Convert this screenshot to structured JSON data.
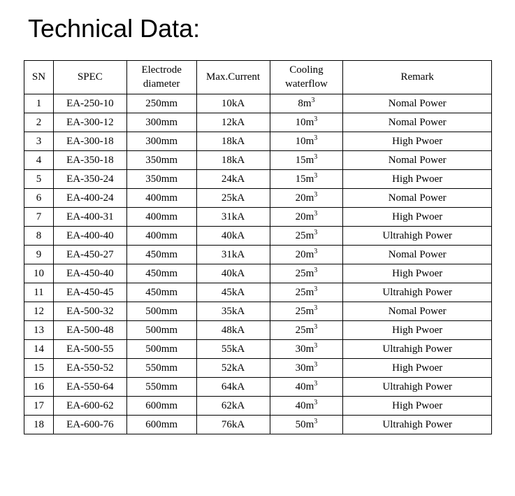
{
  "title": "Technical Data:",
  "table": {
    "columns": [
      {
        "label": "SN",
        "class": "col-sn"
      },
      {
        "label": "SPEC",
        "class": "col-spec"
      },
      {
        "label": "Electrode\ndiameter",
        "class": "col-diameter"
      },
      {
        "label": "Max.Current",
        "class": "col-current"
      },
      {
        "label": "Cooling\nwaterflow",
        "class": "col-cooling"
      },
      {
        "label": "Remark",
        "class": "col-remark"
      }
    ],
    "rows": [
      {
        "sn": "1",
        "spec": "EA-250-10",
        "diameter": "250mm",
        "current": "10kA",
        "cooling_base": "8m",
        "cooling_exp": "3",
        "remark": "Nomal Power"
      },
      {
        "sn": "2",
        "spec": "EA-300-12",
        "diameter": "300mm",
        "current": "12kA",
        "cooling_base": "10m",
        "cooling_exp": "3",
        "remark": "Nomal Power"
      },
      {
        "sn": "3",
        "spec": "EA-300-18",
        "diameter": "300mm",
        "current": "18kA",
        "cooling_base": "10m",
        "cooling_exp": "3",
        "remark": "High Pwoer"
      },
      {
        "sn": "4",
        "spec": "EA-350-18",
        "diameter": "350mm",
        "current": "18kA",
        "cooling_base": "15m",
        "cooling_exp": "3",
        "remark": "Nomal Power"
      },
      {
        "sn": "5",
        "spec": "EA-350-24",
        "diameter": "350mm",
        "current": "24kA",
        "cooling_base": "15m",
        "cooling_exp": "3",
        "remark": "High Pwoer"
      },
      {
        "sn": "6",
        "spec": "EA-400-24",
        "diameter": "400mm",
        "current": "25kA",
        "cooling_base": "20m",
        "cooling_exp": "3",
        "remark": "Nomal Power"
      },
      {
        "sn": "7",
        "spec": "EA-400-31",
        "diameter": "400mm",
        "current": "31kA",
        "cooling_base": "20m",
        "cooling_exp": "3",
        "remark": "High Pwoer"
      },
      {
        "sn": "8",
        "spec": "EA-400-40",
        "diameter": "400mm",
        "current": "40kA",
        "cooling_base": "25m",
        "cooling_exp": "3",
        "remark": "Ultrahigh Power"
      },
      {
        "sn": "9",
        "spec": "EA-450-27",
        "diameter": "450mm",
        "current": "31kA",
        "cooling_base": "20m",
        "cooling_exp": "3",
        "remark": "Nomal Power"
      },
      {
        "sn": "10",
        "spec": "EA-450-40",
        "diameter": "450mm",
        "current": "40kA",
        "cooling_base": "25m",
        "cooling_exp": "3",
        "remark": "High Pwoer"
      },
      {
        "sn": "11",
        "spec": "EA-450-45",
        "diameter": "450mm",
        "current": "45kA",
        "cooling_base": "25m",
        "cooling_exp": "3",
        "remark": "Ultrahigh Power"
      },
      {
        "sn": "12",
        "spec": "EA-500-32",
        "diameter": "500mm",
        "current": "35kA",
        "cooling_base": "25m",
        "cooling_exp": "3",
        "remark": "Nomal Power"
      },
      {
        "sn": "13",
        "spec": "EA-500-48",
        "diameter": "500mm",
        "current": "48kA",
        "cooling_base": "25m",
        "cooling_exp": "3",
        "remark": "High Pwoer"
      },
      {
        "sn": "14",
        "spec": "EA-500-55",
        "diameter": "500mm",
        "current": "55kA",
        "cooling_base": "30m",
        "cooling_exp": "3",
        "remark": "Ultrahigh Power"
      },
      {
        "sn": "15",
        "spec": "EA-550-52",
        "diameter": "550mm",
        "current": "52kA",
        "cooling_base": "30m",
        "cooling_exp": "3",
        "remark": "High Pwoer"
      },
      {
        "sn": "16",
        "spec": "EA-550-64",
        "diameter": "550mm",
        "current": "64kA",
        "cooling_base": "40m",
        "cooling_exp": "3",
        "remark": "Ultrahigh Power"
      },
      {
        "sn": "17",
        "spec": "EA-600-62",
        "diameter": "600mm",
        "current": "62kA",
        "cooling_base": "40m",
        "cooling_exp": "3",
        "remark": "High Pwoer"
      },
      {
        "sn": "18",
        "spec": "EA-600-76",
        "diameter": "600mm",
        "current": "76kA",
        "cooling_base": "50m",
        "cooling_exp": "3",
        "remark": "Ultrahigh Power"
      }
    ]
  }
}
